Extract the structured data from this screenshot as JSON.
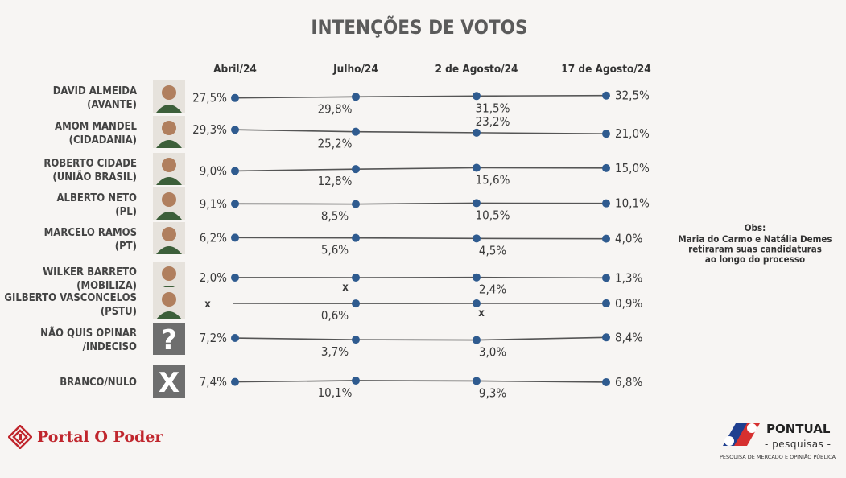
{
  "title": "INTENÇÕES DE VOTOS",
  "columns": [
    "Abril/24",
    "Julho/24",
    "2 de Agosto/24",
    "17 de Agosto/24"
  ],
  "missing_marker": "x",
  "obs": {
    "heading": "Obs:",
    "lines": [
      "Maria do Carmo e Natália Demes",
      "retiraram suas candidaturas",
      "ao longo do processo"
    ]
  },
  "footer": {
    "left_logo": "Portal O Poder",
    "right_logo_name": "PONTUAL",
    "right_logo_sub": "- pesquisas -",
    "right_logo_tag": "PESQUISA DE MERCADO E OPINIÃO PÚBLICA"
  },
  "chart_data": {
    "type": "line",
    "title": "INTENÇÕES DE VOTOS",
    "categories": [
      "Abril/24",
      "Julho/24",
      "2 de Agosto/24",
      "17 de Agosto/24"
    ],
    "series": [
      {
        "name": "DAVID ALMEIDA (AVANTE)",
        "line1": "DAVID ALMEIDA",
        "line2": "(AVANTE)",
        "icon": "photo",
        "values": [
          27.5,
          29.8,
          31.5,
          32.5
        ],
        "labels": [
          "27,5%",
          "29,8%",
          "31,5%",
          "32,5%"
        ]
      },
      {
        "name": "AMOM MANDEL (CIDADANIA)",
        "line1": "AMOM MANDEL",
        "line2": "(CIDADANIA)",
        "icon": "photo",
        "values": [
          29.3,
          25.2,
          23.2,
          21.0
        ],
        "labels": [
          "29,3%",
          "25,2%",
          "23,2%",
          "21,0%"
        ]
      },
      {
        "name": "ROBERTO CIDADE (UNIÃO BRASIL)",
        "line1": "ROBERTO CIDADE",
        "line2": "(UNIÃO BRASIL)",
        "icon": "photo",
        "values": [
          9.0,
          12.8,
          15.6,
          15.0
        ],
        "labels": [
          "9,0%",
          "12,8%",
          "15,6%",
          "15,0%"
        ]
      },
      {
        "name": "ALBERTO NETO (PL)",
        "line1": "ALBERTO NETO",
        "line2": "(PL)",
        "icon": "photo",
        "values": [
          9.1,
          8.5,
          10.5,
          10.1
        ],
        "labels": [
          "9,1%",
          "8,5%",
          "10,5%",
          "10,1%"
        ]
      },
      {
        "name": "MARCELO RAMOS (PT)",
        "line1": "MARCELO RAMOS",
        "line2": "(PT)",
        "icon": "photo",
        "values": [
          6.2,
          5.6,
          4.5,
          4.0
        ],
        "labels": [
          "6,2%",
          "5,6%",
          "4,5%",
          "4,0%"
        ]
      },
      {
        "name": "WILKER BARRETO (MOBILIZA)",
        "line1": "WILKER BARRETO",
        "line2": "(MOBILIZA)",
        "icon": "photo",
        "values": [
          2.0,
          null,
          2.4,
          1.3
        ],
        "labels": [
          "2,0%",
          "x",
          "2,4%",
          "1,3%"
        ]
      },
      {
        "name": "GILBERTO VASCONCELOS (PSTU)",
        "line1": "GILBERTO VASCONCELOS",
        "line2": "(PSTU)",
        "icon": "photo",
        "values": [
          null,
          0.6,
          null,
          0.9
        ],
        "labels": [
          "x",
          "0,6%",
          "x",
          "0,9%"
        ]
      },
      {
        "name": "NÃO QUIS OPINAR /INDECISO",
        "line1": "NÃO QUIS OPINAR",
        "line2": "/INDECISO",
        "icon": "?",
        "values": [
          7.2,
          3.7,
          3.0,
          8.4
        ],
        "labels": [
          "7,2%",
          "3,7%",
          "3,0%",
          "8,4%"
        ]
      },
      {
        "name": "BRANCO/NULO",
        "line1": "BRANCO/NULO",
        "line2": "",
        "icon": "X",
        "values": [
          7.4,
          10.1,
          9.3,
          6.8
        ],
        "labels": [
          "7,4%",
          "10,1%",
          "9,3%",
          "6,8%"
        ]
      }
    ],
    "colors": {
      "line": "#555555",
      "point": "#2f5b8f"
    }
  }
}
